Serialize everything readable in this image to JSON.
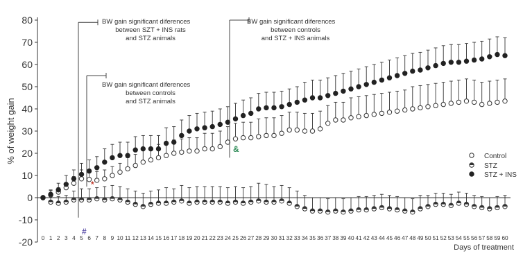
{
  "chart_data": {
    "type": "scatter",
    "title": "",
    "xlabel": "Days of treatment",
    "ylabel": "% of weight gain",
    "xlim": [
      0,
      60
    ],
    "ylim": [
      -20,
      80
    ],
    "yticks": [
      -20,
      -10,
      0,
      10,
      20,
      30,
      40,
      50,
      60,
      70,
      80
    ],
    "grid": false,
    "legend_position": "right",
    "x": [
      0,
      1,
      2,
      3,
      4,
      5,
      6,
      7,
      8,
      9,
      10,
      11,
      12,
      13,
      14,
      15,
      16,
      17,
      18,
      19,
      20,
      21,
      22,
      23,
      24,
      25,
      26,
      27,
      28,
      29,
      30,
      31,
      32,
      33,
      34,
      35,
      36,
      37,
      38,
      39,
      40,
      41,
      42,
      43,
      44,
      45,
      46,
      47,
      48,
      49,
      50,
      51,
      52,
      53,
      54,
      55,
      56,
      57,
      58,
      59,
      60
    ],
    "series": [
      {
        "name": "Control",
        "marker": "open-circle",
        "color": "#333333",
        "values": [
          0,
          1.2,
          2.5,
          4.5,
          6.5,
          8.5,
          8.2,
          7.8,
          8.5,
          10,
          11.5,
          13,
          14.5,
          16,
          17,
          18,
          19,
          20,
          20.5,
          21,
          21,
          22,
          22,
          23,
          25,
          26.5,
          27,
          27,
          27.5,
          28,
          28,
          29,
          30.5,
          30.5,
          30,
          30,
          31,
          33.5,
          35,
          35,
          36,
          36.5,
          37,
          37.5,
          38,
          38.5,
          39,
          39.5,
          40,
          40.5,
          41,
          41.5,
          42,
          42.5,
          43,
          43.5,
          43,
          42,
          42.5,
          43,
          43.5
        ],
        "error": [
          0,
          2,
          2,
          2,
          3,
          4,
          4,
          4,
          4,
          4,
          4,
          5,
          5,
          6,
          5,
          6,
          6,
          6,
          6,
          6,
          6,
          7,
          7,
          7,
          7,
          7,
          7,
          7,
          8,
          8,
          8,
          8,
          8,
          8,
          8,
          8,
          8,
          8,
          8,
          8,
          9,
          9,
          9,
          9,
          9,
          9,
          9,
          9,
          10,
          10,
          10,
          10,
          10,
          10,
          10,
          10,
          10,
          10,
          10,
          10,
          10
        ]
      },
      {
        "name": "STZ",
        "marker": "half-filled-circle",
        "color": "#333333",
        "values": [
          0,
          -2,
          -2.5,
          -2,
          -1,
          -1,
          -1,
          -0.5,
          -1,
          -0.5,
          -1,
          -2,
          -3,
          -4,
          -3,
          -2.5,
          -2.5,
          -2,
          -1.5,
          -2.5,
          -2,
          -2,
          -2,
          -2,
          -2.5,
          -2,
          -2.5,
          -2,
          -1.5,
          -2,
          -2,
          -1.5,
          -2.5,
          -4,
          -5,
          -6,
          -6,
          -6.5,
          -6,
          -6.5,
          -6,
          -5.5,
          -5.5,
          -5,
          -4.5,
          -5,
          -5.5,
          -6,
          -6.5,
          -5,
          -4,
          -3,
          -3,
          -3.5,
          -2.5,
          -3,
          -4,
          -4.5,
          -5,
          -4.5,
          -4
        ],
        "error": [
          0,
          2,
          3,
          3,
          4,
          5,
          5,
          5,
          6,
          6,
          6,
          6,
          6,
          6,
          6,
          6,
          7,
          6,
          7,
          7,
          7,
          7,
          7,
          7,
          7,
          7,
          7,
          7,
          8,
          8,
          7,
          7,
          7,
          7,
          6,
          6,
          6,
          6,
          6,
          6,
          6,
          6,
          6,
          6,
          6,
          6,
          6,
          6,
          6,
          6,
          5,
          5,
          5,
          5,
          5,
          5,
          5,
          5,
          5,
          5,
          5
        ]
      },
      {
        "name": "STZ + INS",
        "marker": "filled-circle",
        "color": "#222222",
        "values": [
          0,
          1.5,
          3.5,
          6,
          8.5,
          10.5,
          12,
          13.5,
          16,
          18,
          19,
          19,
          21.5,
          22,
          22,
          22,
          24.5,
          25,
          28,
          30,
          31,
          31.5,
          32,
          33,
          34,
          35.5,
          37,
          38,
          40,
          40.5,
          40.5,
          41,
          42,
          43,
          44,
          45,
          45,
          46,
          47,
          48,
          49,
          50,
          51,
          52,
          53,
          54,
          55,
          56,
          57,
          57.5,
          58.5,
          59.5,
          60.5,
          61,
          61,
          61.5,
          62,
          62.5,
          63.5,
          64.5,
          64
        ],
        "error": [
          0,
          2,
          3,
          4,
          4,
          5,
          5,
          5,
          6,
          6,
          6,
          6,
          6,
          6,
          6,
          6,
          7,
          7,
          7,
          7,
          7,
          7,
          7,
          7,
          7,
          7,
          7,
          7,
          7,
          7,
          7,
          7,
          7,
          7,
          8,
          8,
          8,
          8,
          8,
          8,
          8,
          8,
          8,
          8,
          8,
          8,
          8,
          8,
          8,
          8,
          8,
          8,
          8,
          8,
          8,
          8,
          8,
          8,
          8,
          8,
          8
        ]
      }
    ],
    "annotations": [
      {
        "text_lines": [
          "BW gain significant diferences",
          "between SZT + INS rats",
          "and STZ animals"
        ],
        "from_x": 5,
        "bracket_y": [
          -9,
          79
        ],
        "marker": "#",
        "marker_color": "#5b4fa8"
      },
      {
        "text_lines": [
          "BW gain significant diferences",
          "between controls",
          "and STZ animals"
        ],
        "from_x": 6,
        "bracket_y": [
          5,
          55
        ],
        "marker": "*",
        "marker_color": "#c0392b"
      },
      {
        "text_lines": [
          "BW gain significant diferences",
          "between controls",
          "and STZ + INS animals"
        ],
        "from_x": 24,
        "bracket_y": [
          18,
          80
        ],
        "marker": "&",
        "marker_color": "#2e8b57"
      }
    ]
  }
}
